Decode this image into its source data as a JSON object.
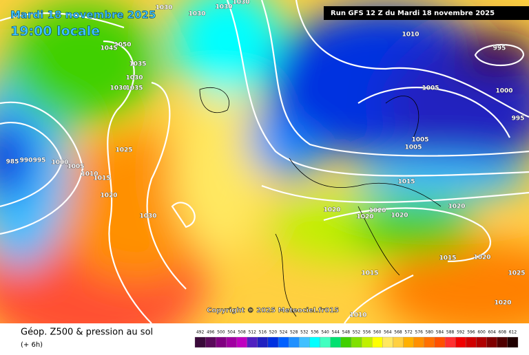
{
  "header": {
    "date": "Mardi 18 novembre 2025",
    "time": "19:00 locale",
    "run": "Run GFS 12 Z du Mardi 18 novembre 2025"
  },
  "isobar_labels": [
    1030,
    1030,
    1030,
    1030,
    1010,
    995,
    1050,
    1045,
    1035,
    1030,
    1035,
    1030,
    1005,
    1000,
    995,
    1005,
    1005,
    1025,
    985,
    990,
    995,
    1000,
    1005,
    1010,
    1015,
    1020,
    1030,
    1015,
    1020,
    1020,
    1020,
    1020,
    1020,
    1015,
    1020,
    1015,
    1025,
    1020,
    1010
  ],
  "copyright": "Copyright © 2025 Meteociel.fr015",
  "footer": {
    "title": "Géop. Z500 & pression au sol",
    "lead": "(+ 6h)"
  },
  "legend": {
    "labels": [
      492,
      496,
      500,
      504,
      508,
      512,
      516,
      520,
      524,
      528,
      532,
      536,
      540,
      544,
      548,
      552,
      556,
      560,
      564,
      568,
      572,
      576,
      580,
      584,
      588,
      592,
      596,
      600,
      604,
      608,
      612
    ],
    "colors": [
      "#3a0a3a",
      "#5a0a5a",
      "#800080",
      "#a000a0",
      "#c000c0",
      "#5020c0",
      "#2020c0",
      "#0030e0",
      "#0060ff",
      "#2090ff",
      "#40c0ff",
      "#00ffff",
      "#40ffc0",
      "#00e070",
      "#40d000",
      "#80e000",
      "#c0f000",
      "#ffff00",
      "#ffe860",
      "#ffd040",
      "#ffb000",
      "#ff9000",
      "#ff7000",
      "#ff5000",
      "#ff3030",
      "#f00000",
      "#d00000",
      "#b00000",
      "#800000",
      "#500000",
      "#200000"
    ]
  }
}
